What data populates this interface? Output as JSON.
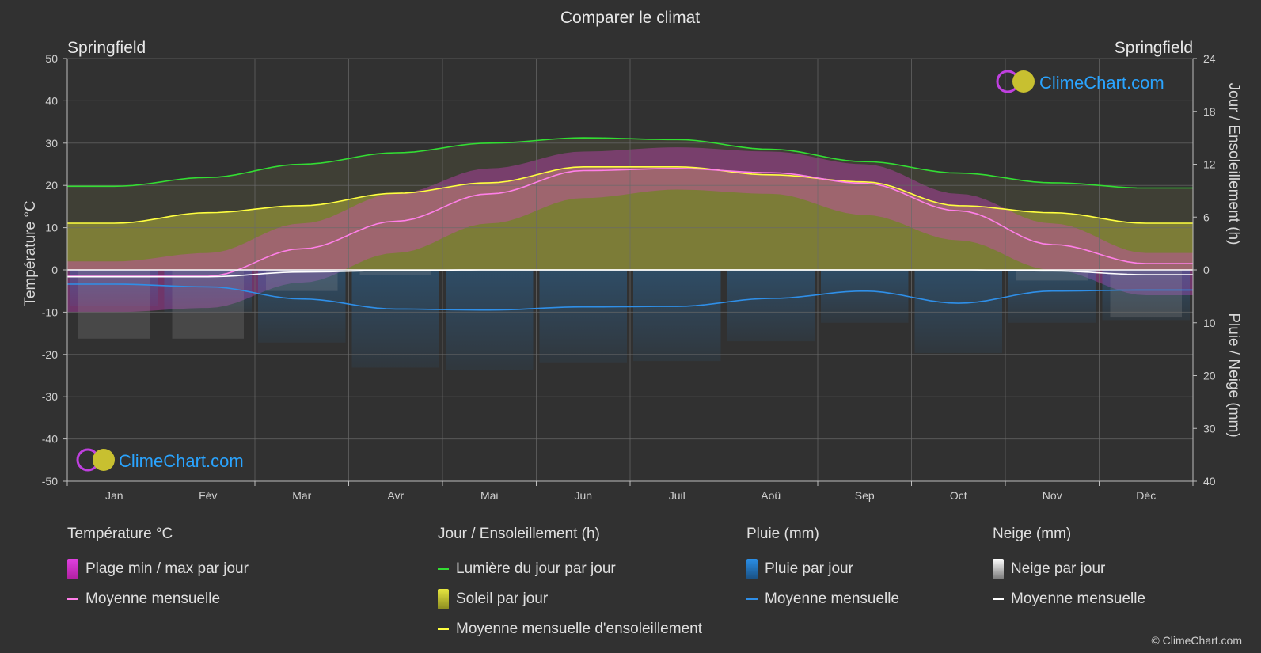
{
  "chart_data": {
    "type": "area",
    "title": "Comparer le climat",
    "location_left": "Springfield",
    "location_right": "Springfield",
    "watermark": "ClimeChart.com",
    "copyright": "© ClimeChart.com",
    "x_categories": [
      "Jan",
      "Fév",
      "Mar",
      "Avr",
      "Mai",
      "Jun",
      "Juil",
      "Aoû",
      "Sep",
      "Oct",
      "Nov",
      "Déc"
    ],
    "y_left": {
      "label": "Température °C",
      "min": -50,
      "max": 50,
      "ticks": [
        50,
        40,
        30,
        20,
        10,
        0,
        -10,
        -20,
        -30,
        -40,
        -50
      ]
    },
    "y_right_top": {
      "label": "Jour / Ensoleillement (h)",
      "min": 0,
      "max": 24,
      "ticks": [
        24,
        18,
        12,
        6,
        0
      ]
    },
    "y_right_bottom": {
      "label": "Pluie / Neige (mm)",
      "min": 0,
      "max": 40,
      "ticks": [
        10,
        20,
        30,
        40
      ]
    },
    "grid": true,
    "series": {
      "temp_max_daily": [
        2,
        4,
        11,
        18,
        24,
        28,
        29,
        28,
        25,
        18,
        11,
        4
      ],
      "temp_min_daily": [
        -10,
        -9,
        -3,
        4,
        11,
        17,
        19,
        18,
        13,
        7,
        0,
        -6
      ],
      "temp_mean_monthly": [
        -1.5,
        -1.5,
        5,
        11.5,
        18,
        23.5,
        24,
        23,
        20.5,
        14,
        6,
        1.5
      ],
      "daylight_hours": [
        9.5,
        10.5,
        12,
        13.3,
        14.4,
        15,
        14.8,
        13.7,
        12.3,
        11,
        9.9,
        9.3
      ],
      "sunshine_hours_monthly": [
        5.3,
        6.5,
        7.3,
        8.7,
        9.9,
        11.7,
        11.7,
        10.8,
        10,
        7.3,
        6.5,
        5.3
      ],
      "rain_mm_monthly_mean": [
        2.7,
        3.2,
        5.5,
        7.4,
        7.6,
        7,
        6.9,
        5.4,
        4,
        6.3,
        4,
        3.8
      ],
      "snow_mm_monthly_mean": [
        1.3,
        1.3,
        0.4,
        0.1,
        0,
        0,
        0,
        0,
        0,
        0,
        0.2,
        0.9
      ]
    }
  },
  "legend": {
    "temperature": {
      "title": "Température °C",
      "range": "Plage min / max par jour",
      "mean": "Moyenne mensuelle"
    },
    "sun": {
      "title": "Jour / Ensoleillement (h)",
      "daylight": "Lumière du jour par jour",
      "sunshine": "Soleil par jour",
      "sun_mean": "Moyenne mensuelle d'ensoleillement"
    },
    "rain": {
      "title": "Pluie (mm)",
      "daily": "Pluie par jour",
      "mean": "Moyenne mensuelle"
    },
    "snow": {
      "title": "Neige (mm)",
      "daily": "Neige par jour",
      "mean": "Moyenne mensuelle"
    }
  },
  "colors": {
    "background": "#313131",
    "temp_range": "#d640c8",
    "temp_mean": "#ff7fe8",
    "daylight": "#33dd33",
    "sunshine": "#c8c83a",
    "sun_mean": "#ffff40",
    "rain": "#2a7fc8",
    "rain_mean": "#2f8fe8",
    "snow": "#9a9a9a",
    "snow_mean": "#ffffff",
    "watermark_text": "#2aa4ff"
  }
}
